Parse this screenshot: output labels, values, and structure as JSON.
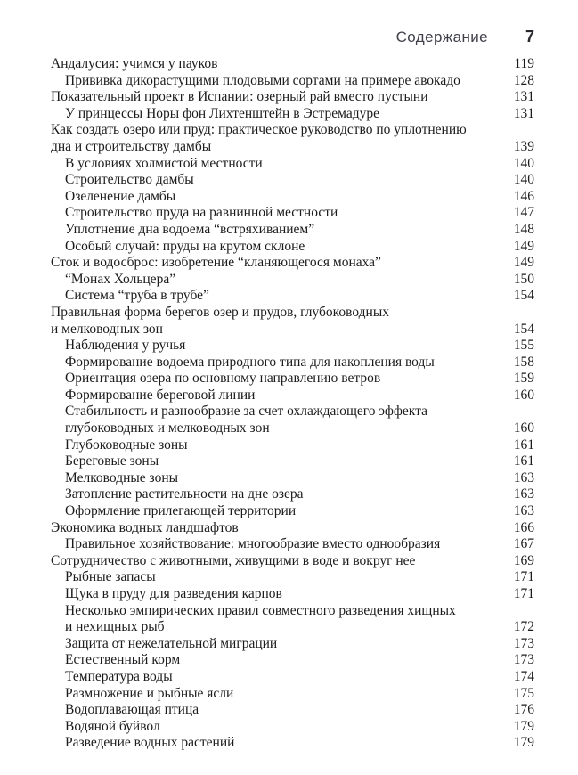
{
  "header": {
    "title": "Содержание",
    "page_number": "7"
  },
  "colors": {
    "body_text": "#1b1b1d",
    "header_text": "#3f404a",
    "page_background": "#ffffff"
  },
  "toc": {
    "entries": [
      {
        "lines": [
          "Андалусия: учимся у пауков"
        ],
        "page": "119",
        "indent": 0
      },
      {
        "lines": [
          "Прививка дикорастущими плодовыми сортами на примере авокадо"
        ],
        "page": "128",
        "indent": 1
      },
      {
        "lines": [
          "Показательный проект в Испании: озерный рай вместо пустыни"
        ],
        "page": "131",
        "indent": 0
      },
      {
        "lines": [
          "У принцессы Норы фон Лихтенштейн в Эстремадуре"
        ],
        "page": "131",
        "indent": 1
      },
      {
        "lines": [
          "Как создать озеро или пруд: практическое руководство по уплотнению",
          "дна и строительству дамбы"
        ],
        "page": "139",
        "indent": 0
      },
      {
        "lines": [
          "В условиях холмистой местности"
        ],
        "page": "140",
        "indent": 1
      },
      {
        "lines": [
          "Строительство дамбы"
        ],
        "page": "140",
        "indent": 1
      },
      {
        "lines": [
          "Озеленение дамбы"
        ],
        "page": "146",
        "indent": 1
      },
      {
        "lines": [
          "Строительство пруда на равнинной местности"
        ],
        "page": "147",
        "indent": 1
      },
      {
        "lines": [
          "Уплотнение дна водоема “встряхиванием”"
        ],
        "page": "148",
        "indent": 1
      },
      {
        "lines": [
          "Особый случай: пруды на крутом склоне"
        ],
        "page": "149",
        "indent": 1
      },
      {
        "lines": [
          "Сток и водосброс: изобретение “кланяющегося монаха”"
        ],
        "page": "149",
        "indent": 0
      },
      {
        "lines": [
          "“Монах Хольцера”"
        ],
        "page": "150",
        "indent": 1
      },
      {
        "lines": [
          "Система “труба в трубе”"
        ],
        "page": "154",
        "indent": 1
      },
      {
        "lines": [
          "Правильная форма берегов озер и прудов, глубоководных",
          "и мелководных зон"
        ],
        "page": "154",
        "indent": 0
      },
      {
        "lines": [
          "Наблюдения у ручья"
        ],
        "page": "155",
        "indent": 1
      },
      {
        "lines": [
          "Формирование водоема природного типа для накопления воды"
        ],
        "page": "158",
        "indent": 1
      },
      {
        "lines": [
          "Ориентация озера по основному направлению ветров"
        ],
        "page": "159",
        "indent": 1
      },
      {
        "lines": [
          "Формирование береговой линии"
        ],
        "page": "160",
        "indent": 1
      },
      {
        "lines": [
          "Стабильность и разнообразие за счет охлаждающего эффекта",
          "глубоководных и мелководных зон"
        ],
        "page": "160",
        "indent": 1
      },
      {
        "lines": [
          "Глубоководные зоны"
        ],
        "page": "161",
        "indent": 1
      },
      {
        "lines": [
          "Береговые зоны"
        ],
        "page": "161",
        "indent": 1
      },
      {
        "lines": [
          "Мелководные зоны"
        ],
        "page": "163",
        "indent": 1
      },
      {
        "lines": [
          "Затопление растительности на дне озера"
        ],
        "page": "163",
        "indent": 1
      },
      {
        "lines": [
          "Оформление прилегающей территории"
        ],
        "page": "163",
        "indent": 1
      },
      {
        "lines": [
          "Экономика водных ландшафтов"
        ],
        "page": "166",
        "indent": 0
      },
      {
        "lines": [
          "Правильное хозяйствование: многообразие вместо однообразия"
        ],
        "page": "167",
        "indent": 1
      },
      {
        "lines": [
          "Сотрудничество с животными, живущими в воде и вокруг нее"
        ],
        "page": "169",
        "indent": 0
      },
      {
        "lines": [
          "Рыбные запасы"
        ],
        "page": "171",
        "indent": 1
      },
      {
        "lines": [
          "Щука в пруду для разведения карпов"
        ],
        "page": "171",
        "indent": 1
      },
      {
        "lines": [
          "Несколько эмпирических правил совместного разведения хищных",
          "и нехищных рыб"
        ],
        "page": "172",
        "indent": 1
      },
      {
        "lines": [
          "Защита от нежелательной миграции"
        ],
        "page": "173",
        "indent": 1
      },
      {
        "lines": [
          "Естественный корм"
        ],
        "page": "173",
        "indent": 1
      },
      {
        "lines": [
          "Температура воды"
        ],
        "page": "174",
        "indent": 1
      },
      {
        "lines": [
          "Размножение и рыбные ясли"
        ],
        "page": "175",
        "indent": 1
      },
      {
        "lines": [
          "Водоплавающая птица"
        ],
        "page": "176",
        "indent": 1
      },
      {
        "lines": [
          "Водяной буйвол"
        ],
        "page": "179",
        "indent": 1
      },
      {
        "lines": [
          "Разведение водных растений"
        ],
        "page": "179",
        "indent": 1
      }
    ]
  }
}
